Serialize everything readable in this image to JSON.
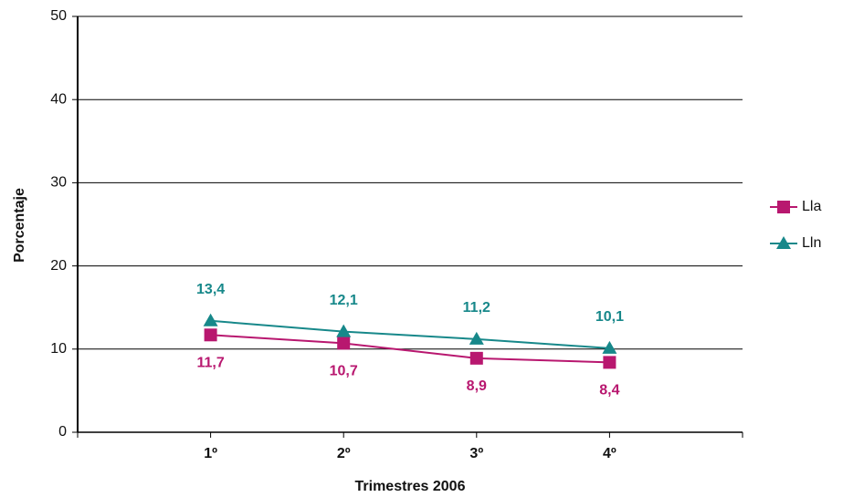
{
  "chart_data": {
    "type": "line",
    "x_label": "Trimestres 2006",
    "y_label": "Porcentaje",
    "categories": [
      "1º",
      "2º",
      "3º",
      "4º"
    ],
    "series": [
      {
        "name": "Lla",
        "color": "#b8176f",
        "marker": "square",
        "values": [
          11.7,
          10.7,
          8.9,
          8.4
        ],
        "value_labels": [
          "11,7",
          "10,7",
          "8,9",
          "8,4"
        ]
      },
      {
        "name": "Lln",
        "color": "#17888a",
        "marker": "triangle",
        "values": [
          13.4,
          12.1,
          11.2,
          10.1
        ],
        "value_labels": [
          "13,4",
          "12,1",
          "11,2",
          "10,1"
        ]
      }
    ],
    "ylim": [
      0,
      50
    ],
    "yticks": [
      0,
      10,
      20,
      30,
      40,
      50
    ],
    "grid": true,
    "legend": "right"
  }
}
